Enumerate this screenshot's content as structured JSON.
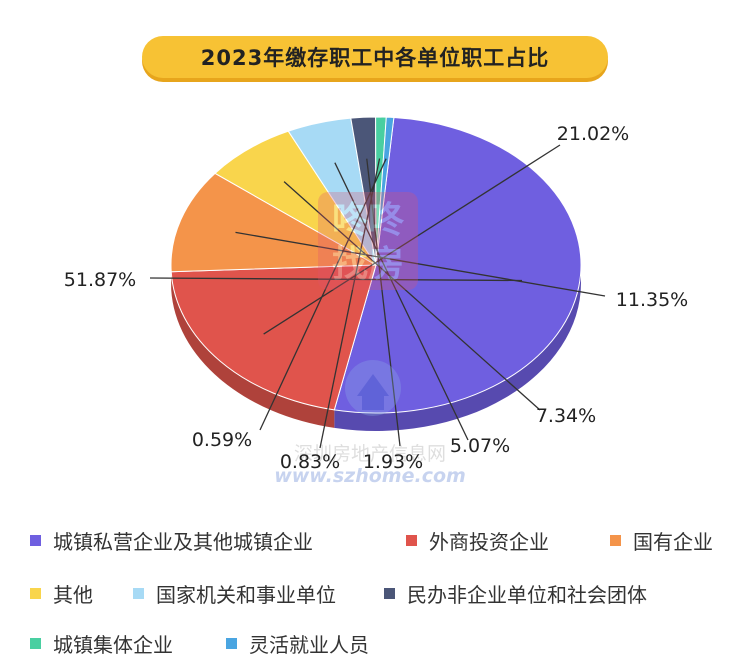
{
  "chart_data": {
    "type": "pie",
    "title": "2023年缴存职工中各单位职工占比",
    "categories": [
      "城镇私营企业及其他城镇企业",
      "外商投资企业",
      "国有企业",
      "其他",
      "国家机关和事业单位",
      "民办非企业单位和社会团体",
      "城镇集体企业",
      "灵活就业人员"
    ],
    "values": [
      51.87,
      21.02,
      11.35,
      7.34,
      5.07,
      1.93,
      0.83,
      0.59
    ],
    "labels": [
      "51.87%",
      "21.02%",
      "11.35%",
      "7.34%",
      "5.07%",
      "1.93%",
      "0.83%",
      "0.59%"
    ],
    "colors": [
      "#6f5fe0",
      "#e0544c",
      "#f4944a",
      "#f9d54c",
      "#a7daf5",
      "#4b5678",
      "#49cfa1",
      "#4aa5e1"
    ],
    "legend_position": "bottom"
  },
  "watermark": {
    "logo_top": "咚咚",
    "logo_bottom": "找房",
    "site_cn": "深圳房地产信息网",
    "site_url": "www.szhome.com"
  }
}
